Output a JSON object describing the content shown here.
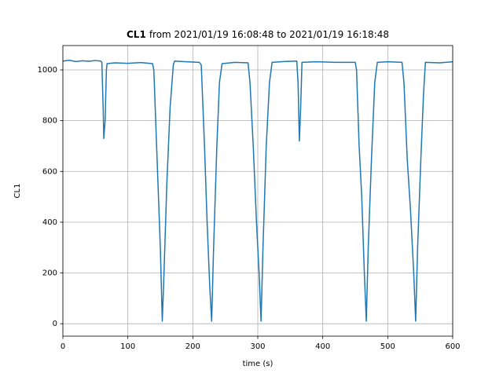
{
  "chart_data": {
    "type": "line",
    "title_label": "CL1",
    "title": "from 2021/01/19 16:08:48 to 2021/01/19 16:18:48",
    "x_label": "time (s)",
    "y_label": "CL1",
    "xlim": [
      0,
      600
    ],
    "ylim": [
      -49,
      1096
    ],
    "xticks": [
      0,
      100,
      200,
      300,
      400,
      500,
      600
    ],
    "yticks": [
      0,
      200,
      400,
      600,
      800,
      1000
    ],
    "grid": true,
    "x": [
      0,
      10,
      20,
      30,
      40,
      50,
      58,
      60,
      62,
      63,
      65,
      67,
      68,
      80,
      100,
      120,
      138,
      140,
      145,
      150,
      153,
      155,
      160,
      165,
      170,
      172,
      190,
      210,
      213,
      218,
      222,
      226,
      229,
      232,
      237,
      241,
      245,
      265,
      285,
      288,
      293,
      298,
      302,
      305,
      308,
      313,
      318,
      322,
      340,
      360,
      362,
      364,
      366,
      368,
      390,
      420,
      450,
      452,
      456,
      460,
      464,
      467,
      470,
      475,
      480,
      484,
      500,
      522,
      525,
      530,
      535,
      540,
      543,
      546,
      551,
      555,
      558,
      580,
      600
    ],
    "series": [
      {
        "name": "CL1",
        "color": "#1f77b4",
        "values": [
          1035,
          1038,
          1033,
          1036,
          1034,
          1037,
          1035,
          1030,
          850,
          730,
          800,
          1000,
          1025,
          1028,
          1026,
          1029,
          1025,
          1000,
          650,
          300,
          10,
          150,
          550,
          850,
          1020,
          1035,
          1032,
          1030,
          1020,
          700,
          400,
          150,
          10,
          300,
          700,
          950,
          1025,
          1030,
          1028,
          950,
          700,
          400,
          200,
          10,
          300,
          700,
          950,
          1030,
          1033,
          1035,
          950,
          720,
          850,
          1030,
          1032,
          1030,
          1030,
          1000,
          700,
          500,
          200,
          10,
          300,
          650,
          950,
          1030,
          1032,
          1030,
          950,
          650,
          450,
          200,
          10,
          300,
          650,
          900,
          1030,
          1028,
          1032
        ]
      }
    ]
  }
}
